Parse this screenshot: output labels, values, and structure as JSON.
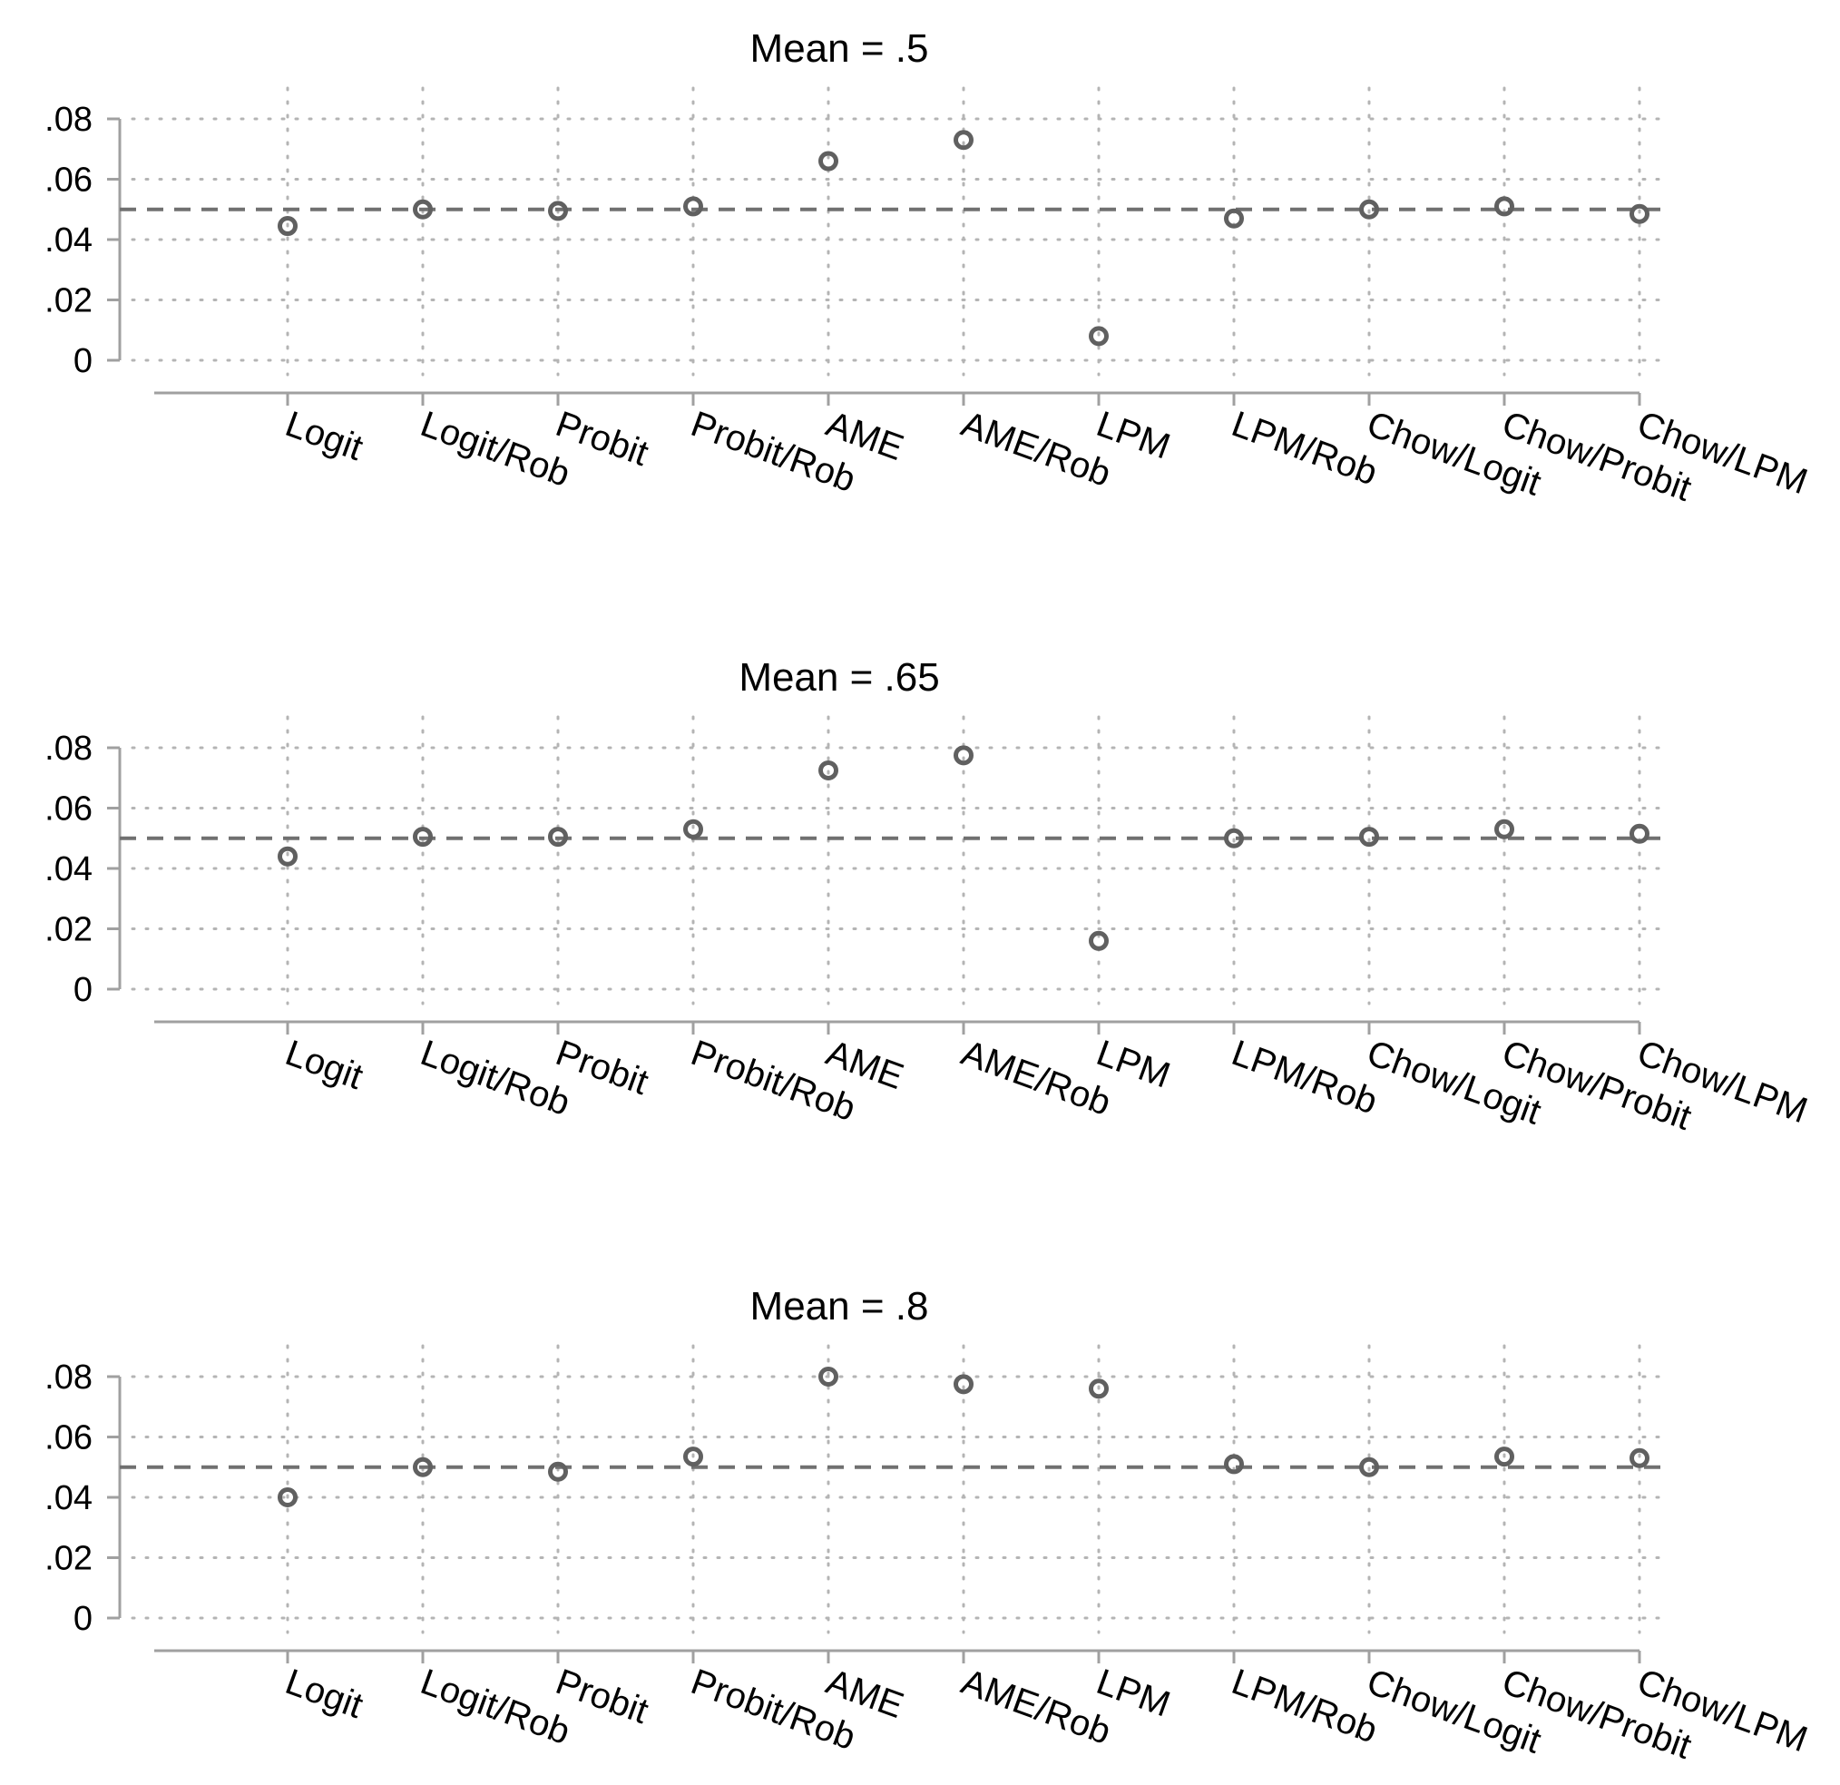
{
  "chart_data": [
    {
      "type": "scatter",
      "title": "Mean = .5",
      "categories": [
        "Logit",
        "Logit/Rob",
        "Probit",
        "Probit/Rob",
        "AME",
        "AME/Rob",
        "LPM",
        "LPM/Rob",
        "Chow/Logit",
        "Chow/Probit",
        "Chow/LPM"
      ],
      "values": [
        0.0445,
        0.05,
        0.0495,
        0.051,
        0.066,
        0.073,
        0.008,
        0.047,
        0.05,
        0.051,
        0.0485
      ],
      "yticks": [
        ".08",
        ".06",
        ".04",
        ".02",
        "0"
      ],
      "ylim": [
        0,
        0.08
      ],
      "reference_line": 0.05,
      "grid": true
    },
    {
      "type": "scatter",
      "title": "Mean = .65",
      "categories": [
        "Logit",
        "Logit/Rob",
        "Probit",
        "Probit/Rob",
        "AME",
        "AME/Rob",
        "LPM",
        "LPM/Rob",
        "Chow/Logit",
        "Chow/Probit",
        "Chow/LPM"
      ],
      "values": [
        0.044,
        0.0505,
        0.0505,
        0.053,
        0.0725,
        0.0775,
        0.016,
        0.05,
        0.0505,
        0.053,
        0.0515
      ],
      "yticks": [
        ".08",
        ".06",
        ".04",
        ".02",
        "0"
      ],
      "ylim": [
        0,
        0.08
      ],
      "reference_line": 0.05,
      "grid": true
    },
    {
      "type": "scatter",
      "title": "Mean = .8",
      "categories": [
        "Logit",
        "Logit/Rob",
        "Probit",
        "Probit/Rob",
        "AME",
        "AME/Rob",
        "LPM",
        "LPM/Rob",
        "Chow/Logit",
        "Chow/Probit",
        "Chow/LPM"
      ],
      "values": [
        0.04,
        0.05,
        0.0485,
        0.0535,
        0.08,
        0.0775,
        0.076,
        0.051,
        0.05,
        0.0535,
        0.053
      ],
      "yticks": [
        ".08",
        ".06",
        ".04",
        ".02",
        "0"
      ],
      "ylim": [
        0,
        0.08
      ],
      "reference_line": 0.05,
      "grid": true
    }
  ],
  "colors": {
    "marker": "#606060",
    "reference_line": "#707070",
    "axis": "#a0a0a0",
    "grid": "#b4b4b4"
  }
}
